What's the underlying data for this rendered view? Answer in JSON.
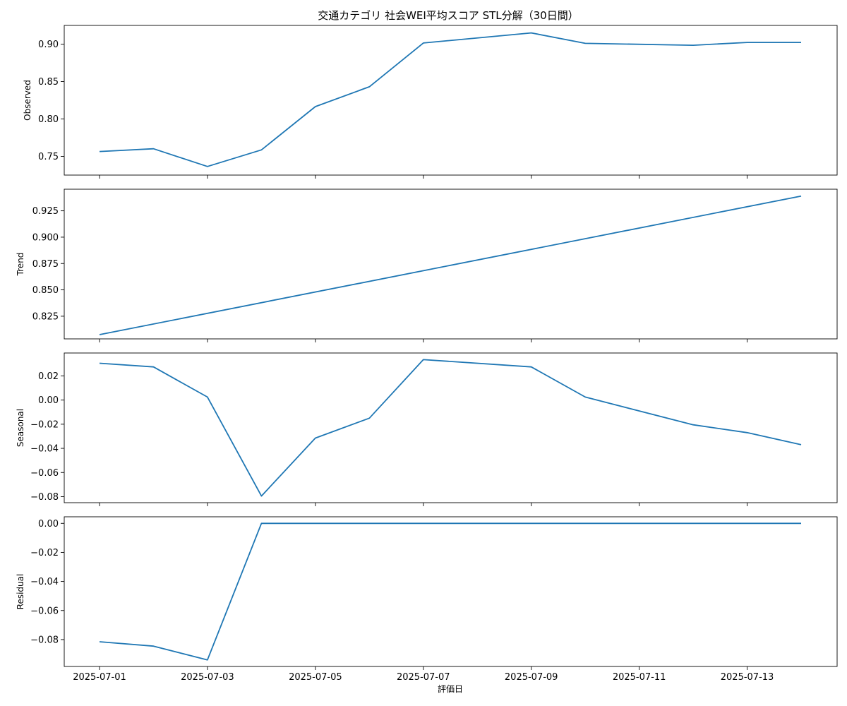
{
  "chart_data": {
    "type": "line",
    "title": "交通カテゴリ 社会WEI平均スコア STL分解（30日間）",
    "xlabel": "評価日",
    "x_tick_labels": [
      "2025-07-01",
      "2025-07-03",
      "2025-07-05",
      "2025-07-07",
      "2025-07-09",
      "2025-07-11",
      "2025-07-13"
    ],
    "x_tick_dates": [
      "2025-07-01",
      "2025-07-03",
      "2025-07-05",
      "2025-07-07",
      "2025-07-09",
      "2025-07-11",
      "2025-07-13"
    ],
    "x_range": [
      "2025-07-01",
      "2025-07-14"
    ],
    "color": "#1f77b4",
    "panels": [
      {
        "ylabel": "Observed",
        "ylim": [
          0.725,
          0.925
        ],
        "yticks": [
          0.75,
          0.8,
          0.85,
          0.9
        ],
        "ytick_labels": [
          "0.75",
          "0.80",
          "0.85",
          "0.90"
        ],
        "points": [
          {
            "x": "2025-07-01",
            "y": 0.7565
          },
          {
            "x": "2025-07-02",
            "y": 0.7602
          },
          {
            "x": "2025-07-03",
            "y": 0.7365
          },
          {
            "x": "2025-07-04",
            "y": 0.7587
          },
          {
            "x": "2025-07-05",
            "y": 0.8165
          },
          {
            "x": "2025-07-06",
            "y": 0.843
          },
          {
            "x": "2025-07-07",
            "y": 0.9015
          },
          {
            "x": "2025-07-09",
            "y": 0.915
          },
          {
            "x": "2025-07-10",
            "y": 0.901
          },
          {
            "x": "2025-07-12",
            "y": 0.8985
          },
          {
            "x": "2025-07-13",
            "y": 0.9023
          },
          {
            "x": "2025-07-14",
            "y": 0.9023
          }
        ]
      },
      {
        "ylabel": "Trend",
        "ylim": [
          0.8035,
          0.9455
        ],
        "yticks": [
          0.825,
          0.85,
          0.875,
          0.9,
          0.925
        ],
        "ytick_labels": [
          "0.825",
          "0.850",
          "0.875",
          "0.900",
          "0.925"
        ],
        "points": [
          {
            "x": "2025-07-01",
            "y": 0.8075
          },
          {
            "x": "2025-07-14",
            "y": 0.939
          }
        ]
      },
      {
        "ylabel": "Seasonal",
        "ylim": [
          -0.085,
          0.039
        ],
        "yticks": [
          0.02,
          0.0,
          -0.02,
          -0.04,
          -0.06,
          -0.08
        ],
        "ytick_labels": [
          "0.02",
          "0.00",
          "−0.02",
          "−0.04",
          "−0.06",
          "−0.08"
        ],
        "points": [
          {
            "x": "2025-07-01",
            "y": 0.0305
          },
          {
            "x": "2025-07-02",
            "y": 0.0275
          },
          {
            "x": "2025-07-03",
            "y": 0.0025
          },
          {
            "x": "2025-07-04",
            "y": -0.0795
          },
          {
            "x": "2025-07-05",
            "y": -0.0315
          },
          {
            "x": "2025-07-06",
            "y": -0.015
          },
          {
            "x": "2025-07-07",
            "y": 0.0335
          },
          {
            "x": "2025-07-09",
            "y": 0.0275
          },
          {
            "x": "2025-07-10",
            "y": 0.0025
          },
          {
            "x": "2025-07-12",
            "y": -0.0205
          },
          {
            "x": "2025-07-13",
            "y": -0.027
          },
          {
            "x": "2025-07-14",
            "y": -0.037
          }
        ]
      },
      {
        "ylabel": "Residual",
        "ylim": [
          -0.0985,
          0.0045
        ],
        "yticks": [
          0.0,
          -0.02,
          -0.04,
          -0.06,
          -0.08
        ],
        "ytick_labels": [
          "0.00",
          "−0.02",
          "−0.04",
          "−0.06",
          "−0.08"
        ],
        "points": [
          {
            "x": "2025-07-01",
            "y": -0.0815
          },
          {
            "x": "2025-07-02",
            "y": -0.0845
          },
          {
            "x": "2025-07-03",
            "y": -0.094
          },
          {
            "x": "2025-07-04",
            "y": 0.0
          },
          {
            "x": "2025-07-14",
            "y": 0.0
          }
        ]
      }
    ]
  }
}
